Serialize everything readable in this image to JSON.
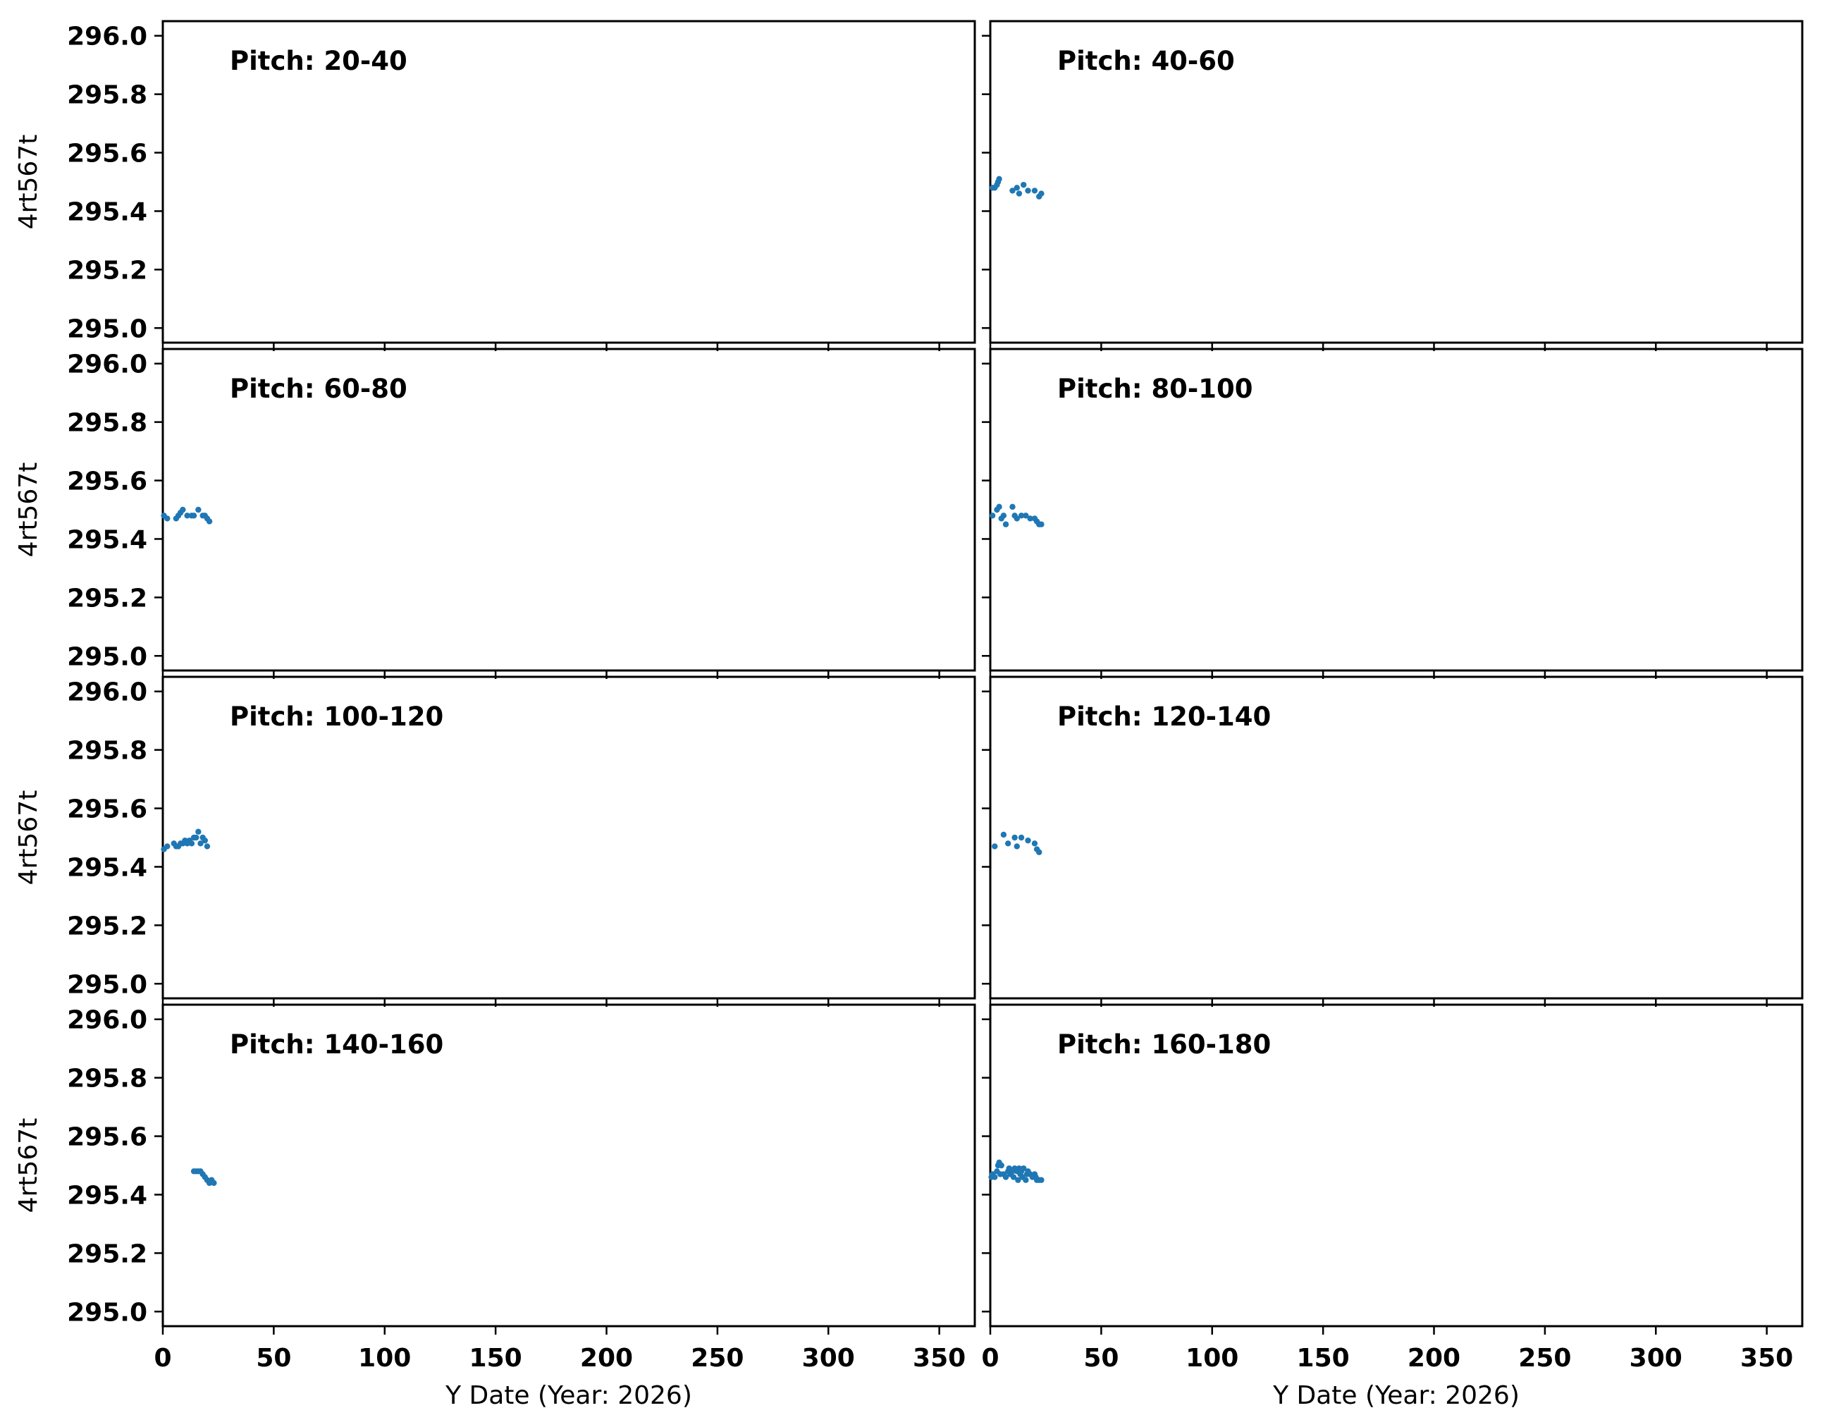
{
  "chart_data": {
    "type": "scatter",
    "layout": "4x2 grid of panels with shared axes",
    "ylabel": "4rt567t",
    "xlabel": "Y Date (Year: 2026)",
    "xlim": [
      0,
      366
    ],
    "ylim": [
      294.95,
      296.05
    ],
    "xticks": [
      0,
      50,
      100,
      150,
      200,
      250,
      300,
      350
    ],
    "yticks": [
      295.0,
      295.2,
      295.4,
      295.6,
      295.8,
      296.0
    ],
    "xtick_labels": [
      "0",
      "50",
      "100",
      "150",
      "200",
      "250",
      "300",
      "350"
    ],
    "ytick_labels": [
      "295.0",
      "295.2",
      "295.4",
      "295.6",
      "295.8",
      "296.0"
    ],
    "marker_color": "#1f77b4",
    "grid": false,
    "panels": [
      {
        "title": "Pitch: 20-40",
        "x": [],
        "y": []
      },
      {
        "title": "Pitch: 40-60",
        "x": [
          1,
          2,
          3,
          3.5,
          4,
          10,
          12,
          13,
          15,
          17,
          20,
          22,
          23
        ],
        "y": [
          295.48,
          295.48,
          295.49,
          295.5,
          295.51,
          295.47,
          295.48,
          295.46,
          295.49,
          295.47,
          295.47,
          295.45,
          295.46
        ]
      },
      {
        "title": "Pitch: 60-80",
        "x": [
          0.5,
          2,
          6,
          7,
          8,
          9,
          11,
          13,
          14,
          16,
          18,
          19,
          20,
          21
        ],
        "y": [
          295.48,
          295.47,
          295.47,
          295.48,
          295.49,
          295.5,
          295.48,
          295.48,
          295.48,
          295.5,
          295.48,
          295.48,
          295.47,
          295.46
        ]
      },
      {
        "title": "Pitch: 80-100",
        "x": [
          1,
          3,
          4,
          5,
          6,
          7,
          10,
          11,
          12,
          14,
          16,
          18,
          20,
          21,
          22,
          23
        ],
        "y": [
          295.48,
          295.5,
          295.51,
          295.47,
          295.48,
          295.45,
          295.51,
          295.48,
          295.47,
          295.48,
          295.48,
          295.47,
          295.47,
          295.46,
          295.45,
          295.45
        ]
      },
      {
        "title": "Pitch: 100-120",
        "x": [
          0.5,
          2,
          5,
          6,
          7,
          8,
          9,
          10,
          11,
          12,
          13,
          14,
          15,
          16,
          17,
          18,
          19,
          20
        ],
        "y": [
          295.46,
          295.47,
          295.48,
          295.47,
          295.47,
          295.48,
          295.48,
          295.49,
          295.48,
          295.49,
          295.48,
          295.5,
          295.5,
          295.52,
          295.48,
          295.5,
          295.49,
          295.47
        ]
      },
      {
        "title": "Pitch: 120-140",
        "x": [
          2,
          6,
          8,
          11,
          12,
          14,
          17,
          20,
          21,
          22
        ],
        "y": [
          295.47,
          295.51,
          295.48,
          295.5,
          295.47,
          295.5,
          295.49,
          295.48,
          295.46,
          295.45
        ]
      },
      {
        "title": "Pitch: 140-160",
        "x": [
          14,
          15,
          16,
          17,
          18,
          19,
          20,
          21,
          22,
          23
        ],
        "y": [
          295.48,
          295.48,
          295.48,
          295.48,
          295.47,
          295.46,
          295.45,
          295.44,
          295.45,
          295.44
        ]
      },
      {
        "title": "Pitch: 160-180",
        "x": [
          0.5,
          1,
          2,
          3,
          3.5,
          4,
          4.5,
          5,
          6,
          7,
          8,
          8.5,
          9,
          10,
          10.5,
          11,
          12,
          12.5,
          13,
          13.5,
          14,
          14.5,
          15,
          16,
          16.5,
          17,
          18,
          19,
          20,
          20.5,
          21,
          22,
          23
        ],
        "y": [
          295.46,
          295.47,
          295.46,
          295.48,
          295.5,
          295.51,
          295.47,
          295.5,
          295.47,
          295.46,
          295.48,
          295.49,
          295.47,
          295.48,
          295.46,
          295.49,
          295.48,
          295.45,
          295.49,
          295.47,
          295.48,
          295.46,
          295.49,
          295.45,
          295.47,
          295.48,
          295.47,
          295.46,
          295.47,
          295.46,
          295.45,
          295.45,
          295.45
        ]
      }
    ]
  }
}
